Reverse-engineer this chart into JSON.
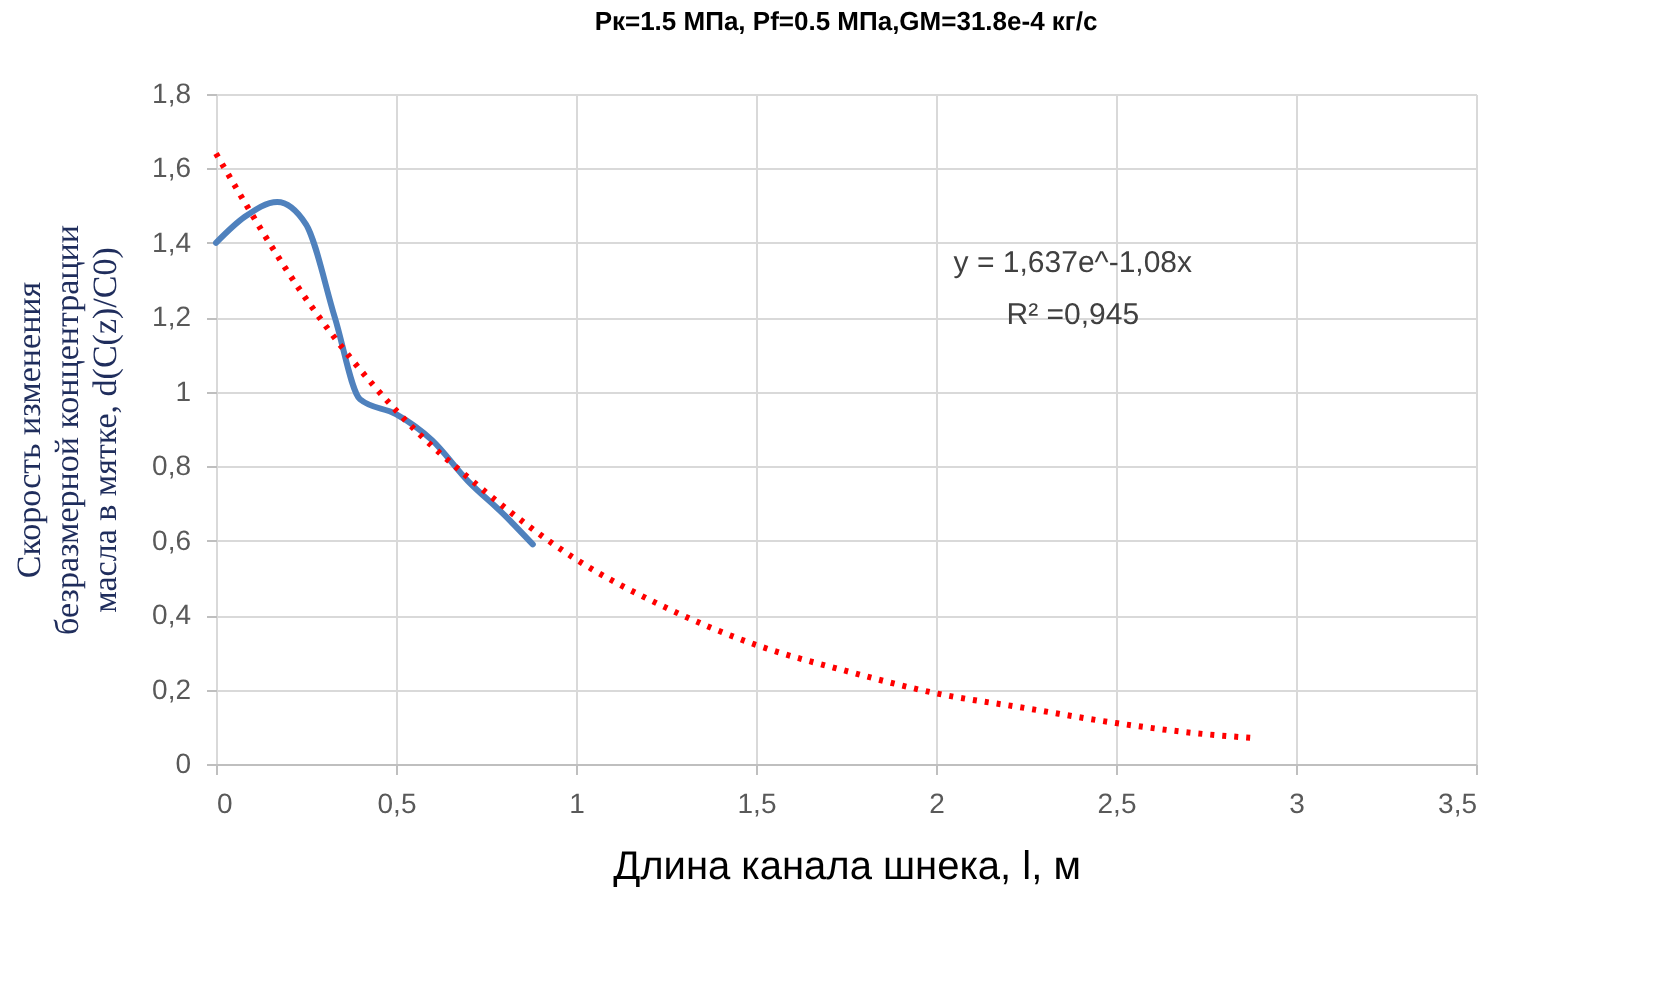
{
  "chart_data": {
    "type": "line",
    "title": "Pк=1.5 МПа,  Pf=0.5 МПа,GM=31.8e-4 кг/с",
    "xlabel": "Длина канала шнека, l, м",
    "ylabel": "Скорость изменения\nбезразмерной концентрации\nмасла в мятке,  d(C(z)/C0)",
    "annotations": [
      "y = 1,637e^-1,08x",
      "R² =0,945"
    ],
    "series": [
      {
        "color": "#4f81bd",
        "line_style": "solid",
        "x": [
          0,
          0.08,
          0.17,
          0.25,
          0.33,
          0.4,
          0.5,
          0.6,
          0.7,
          0.8,
          0.88
        ],
        "values": [
          1.4,
          1.47,
          1.51,
          1.45,
          1.2,
          0.98,
          0.94,
          0.87,
          0.76,
          0.67,
          0.59
        ]
      },
      {
        "type": "line",
        "color": "#ff0000",
        "line_style": "dotted",
        "x": [
          0,
          0.25,
          0.5,
          0.75,
          1,
          1.25,
          1.5,
          1.75,
          2,
          2.25,
          2.5,
          2.75,
          2.88
        ],
        "values": [
          1.64,
          1.25,
          0.95,
          0.73,
          0.55,
          0.42,
          0.32,
          0.25,
          0.19,
          0.15,
          0.11,
          0.08,
          0.07
        ]
      }
    ],
    "xlim": [
      0,
      3.5
    ],
    "xticks": [
      0,
      {
        "value": 0.5,
        "label": "0,5"
      },
      1,
      {
        "value": 1.5,
        "label": "1,5"
      },
      2,
      {
        "value": 2.5,
        "label": "2,5"
      },
      3,
      {
        "value": 3.5,
        "label": "3,5"
      }
    ],
    "ylim": [
      0,
      1.8
    ],
    "yticks": [
      0,
      {
        "value": 0.2,
        "label": "0,2"
      },
      {
        "value": 0.4,
        "label": "0,4"
      },
      {
        "value": 0.6,
        "label": "0,6"
      },
      {
        "value": 0.8,
        "label": "0,8"
      },
      1,
      {
        "value": 1.2,
        "label": "1,2"
      },
      {
        "value": 1.4,
        "label": "1,4"
      },
      {
        "value": 1.6,
        "label": "1,6"
      },
      {
        "value": 1.8,
        "label": "1,8"
      }
    ],
    "grid": true,
    "marker": "none"
  }
}
